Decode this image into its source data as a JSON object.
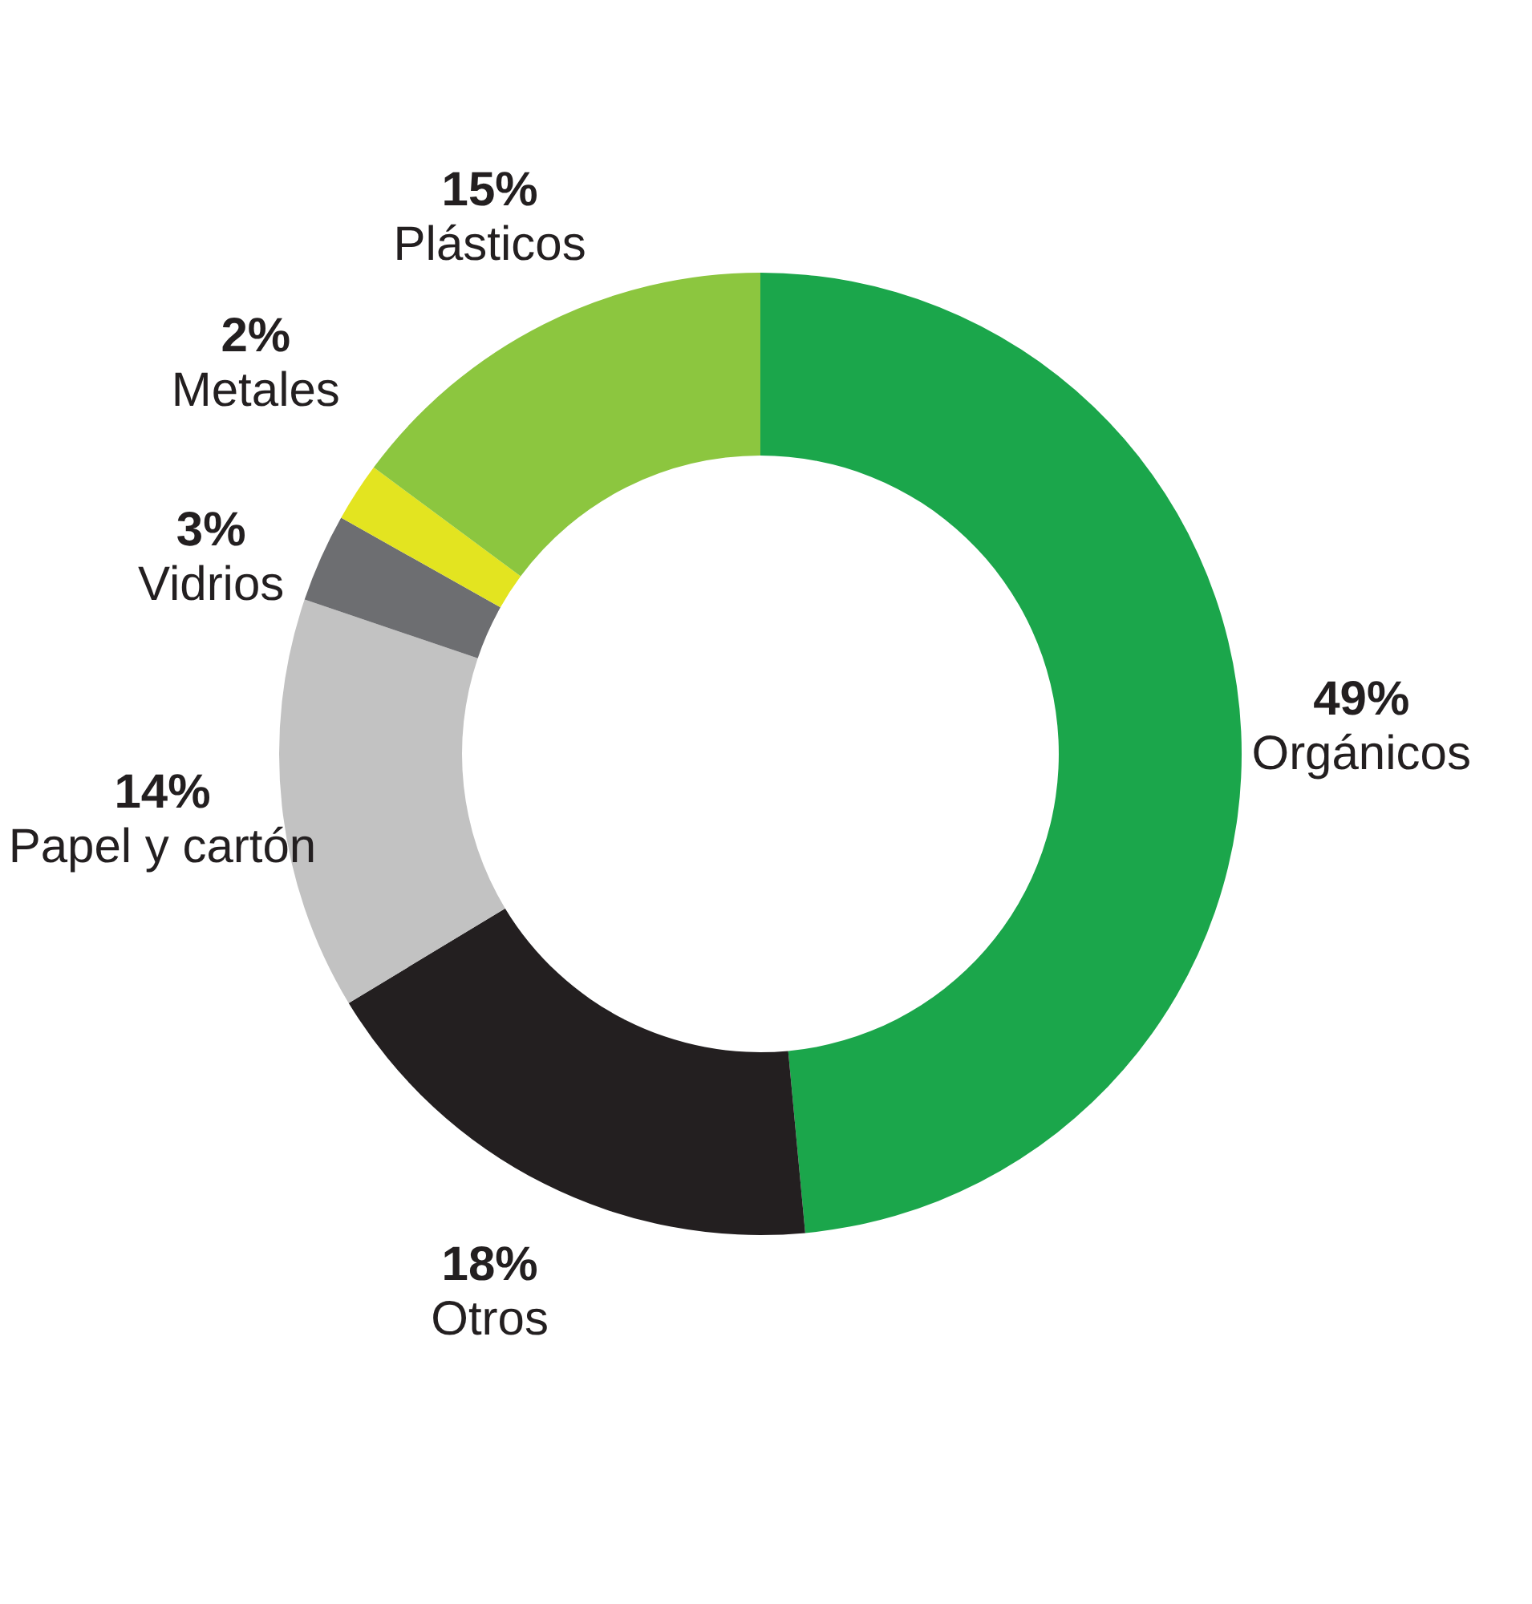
{
  "chart_data": {
    "type": "donut",
    "categories": [
      "Orgánicos",
      "Otros",
      "Papel y cartón",
      "Vidrios",
      "Metales",
      "Plásticos"
    ],
    "values": [
      49,
      18,
      14,
      3,
      2,
      15
    ],
    "value_labels": [
      "49%",
      "18%",
      "14%",
      "3%",
      "2%",
      "15%"
    ],
    "colors": [
      "#1ba64b",
      "#231f20",
      "#c2c2c2",
      "#6d6e71",
      "#e3e420",
      "#8cc63f"
    ],
    "legend": false
  }
}
